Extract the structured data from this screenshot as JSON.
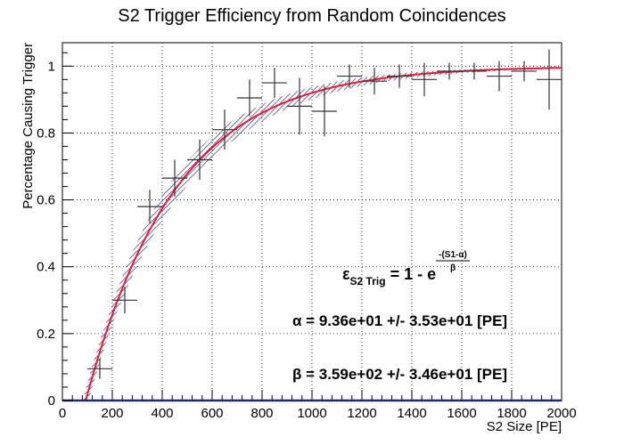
{
  "chart_data": {
    "type": "scatter",
    "title": "S2 Trigger Efficiency from Random Coincidences",
    "xlabel": "S2 Size [PE]",
    "ylabel": "Percentage Causing Trigger",
    "xlim": [
      0,
      2000
    ],
    "ylim": [
      0,
      1.07
    ],
    "x_ticks": [
      0,
      200,
      400,
      600,
      800,
      1000,
      1200,
      1400,
      1600,
      1800,
      2000
    ],
    "y_ticks": [
      0,
      0.2,
      0.4,
      0.6,
      0.8,
      1
    ],
    "x_tick_labels": [
      "0",
      "200",
      "400",
      "600",
      "800",
      "1000",
      "1200",
      "1400",
      "1600",
      "1800",
      "2000"
    ],
    "y_tick_labels": [
      "0",
      "0.2",
      "0.4",
      "0.6",
      "0.8",
      "1"
    ],
    "grid": true,
    "points": [
      {
        "x": 150,
        "y": 0.095,
        "xerr": 50,
        "yerr": 0.03
      },
      {
        "x": 250,
        "y": 0.3,
        "xerr": 50,
        "yerr": 0.04
      },
      {
        "x": 350,
        "y": 0.58,
        "xerr": 50,
        "yerr": 0.05
      },
      {
        "x": 450,
        "y": 0.665,
        "xerr": 50,
        "yerr": 0.055
      },
      {
        "x": 550,
        "y": 0.72,
        "xerr": 50,
        "yerr": 0.06
      },
      {
        "x": 650,
        "y": 0.81,
        "xerr": 50,
        "yerr": 0.06
      },
      {
        "x": 750,
        "y": 0.905,
        "xerr": 50,
        "yerr": 0.055
      },
      {
        "x": 850,
        "y": 0.95,
        "xerr": 50,
        "yerr": 0.045
      },
      {
        "x": 950,
        "y": 0.88,
        "xerr": 50,
        "yerr": 0.085
      },
      {
        "x": 1050,
        "y": 0.865,
        "xerr": 50,
        "yerr": 0.075
      },
      {
        "x": 1150,
        "y": 0.97,
        "xerr": 50,
        "yerr": 0.035
      },
      {
        "x": 1250,
        "y": 0.955,
        "xerr": 50,
        "yerr": 0.04
      },
      {
        "x": 1350,
        "y": 0.97,
        "xerr": 50,
        "yerr": 0.035
      },
      {
        "x": 1450,
        "y": 0.96,
        "xerr": 50,
        "yerr": 0.05
      },
      {
        "x": 1550,
        "y": 0.985,
        "xerr": 50,
        "yerr": 0.025
      },
      {
        "x": 1650,
        "y": 0.985,
        "xerr": 50,
        "yerr": 0.025
      },
      {
        "x": 1750,
        "y": 0.97,
        "xerr": 50,
        "yerr": 0.045
      },
      {
        "x": 1850,
        "y": 0.985,
        "xerr": 50,
        "yerr": 0.03
      },
      {
        "x": 1950,
        "y": 0.96,
        "xerr": 50,
        "yerr": 0.09
      }
    ],
    "fit": {
      "alpha": 93.6,
      "beta": 359,
      "alpha_label": "α = 9.36e+01 +/- 3.53e+01 [PE]",
      "beta_label": "β = 3.59e+02 +/- 3.46e+01 [PE]",
      "formula_lhs": "ε",
      "formula_sub": "S2 Trig",
      "formula_mid": " = 1 - e",
      "formula_exp_num": "-(S1-α)",
      "formula_exp_den": "β",
      "line_color": "#e8193c",
      "band_color": "#1f2a6b"
    }
  }
}
